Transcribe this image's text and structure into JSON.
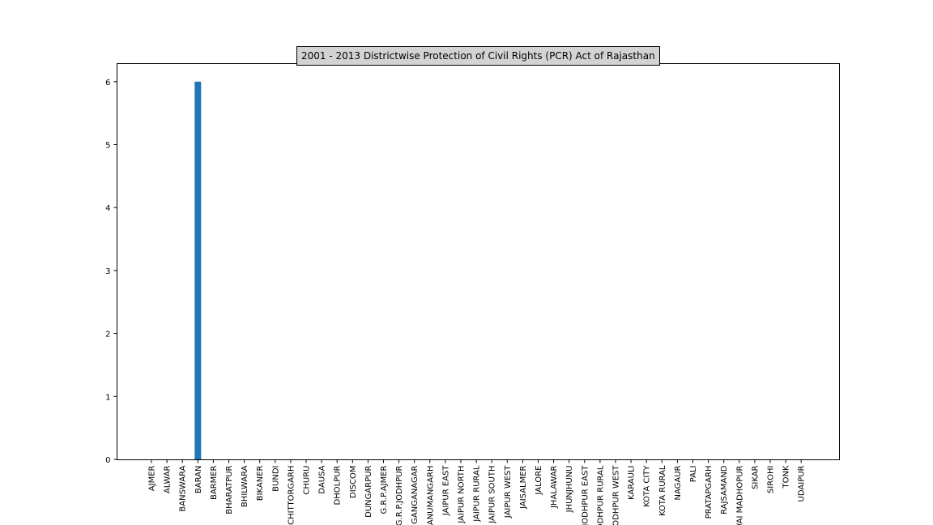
{
  "chart_data": {
    "type": "bar",
    "title": "2001 - 2013 Districtwise Protection of Civil Rights (PCR) Act of Rajasthan",
    "xlabel": "",
    "ylabel": "",
    "ylim": [
      0,
      6.3
    ],
    "yticks": [
      0,
      1,
      2,
      3,
      4,
      5,
      6
    ],
    "bar_color": "#1f77b4",
    "grid": false,
    "categories": [
      "AJMER",
      "ALWAR",
      "BANSWARA",
      "BARAN",
      "BARMER",
      "BHARATPUR",
      "BHILWARA",
      "BIKANER",
      "BUNDI",
      "CHITTORGARH",
      "CHURU",
      "DAUSA",
      "DHOLPUR",
      "DISCOM",
      "DUNGARPUR",
      "G.R.P.AJMER",
      "G.R.P.JODHPUR",
      "GANGANAGAR",
      "HANUMANGARH",
      "JAIPUR EAST",
      "JAIPUR NORTH",
      "JAIPUR RURAL",
      "JAIPUR SOUTH",
      "JAIPUR WEST",
      "JAISALMER",
      "JALORE",
      "JHALAWAR",
      "JHUNJHUNU",
      "JODHPUR EAST",
      "JODHPUR RURAL",
      "JODHPUR WEST",
      "KARAULI",
      "KOTA CITY",
      "KOTA RURAL",
      "NAGAUR",
      "PALI",
      "PRATAPGARH",
      "RAJSAMAND",
      "SAWAI MADHOPUR",
      "SIKAR",
      "SIROHI",
      "TONK",
      "UDAIPUR"
    ],
    "values": [
      0,
      0,
      0,
      6,
      0,
      0,
      0,
      0,
      0,
      0,
      0,
      0,
      0,
      0,
      0,
      0,
      0,
      0,
      0,
      0,
      0,
      0,
      0,
      0,
      0,
      0,
      0,
      0,
      0,
      0,
      0,
      0,
      0,
      0,
      0,
      0,
      0,
      0,
      0,
      0,
      0,
      0,
      0
    ]
  }
}
